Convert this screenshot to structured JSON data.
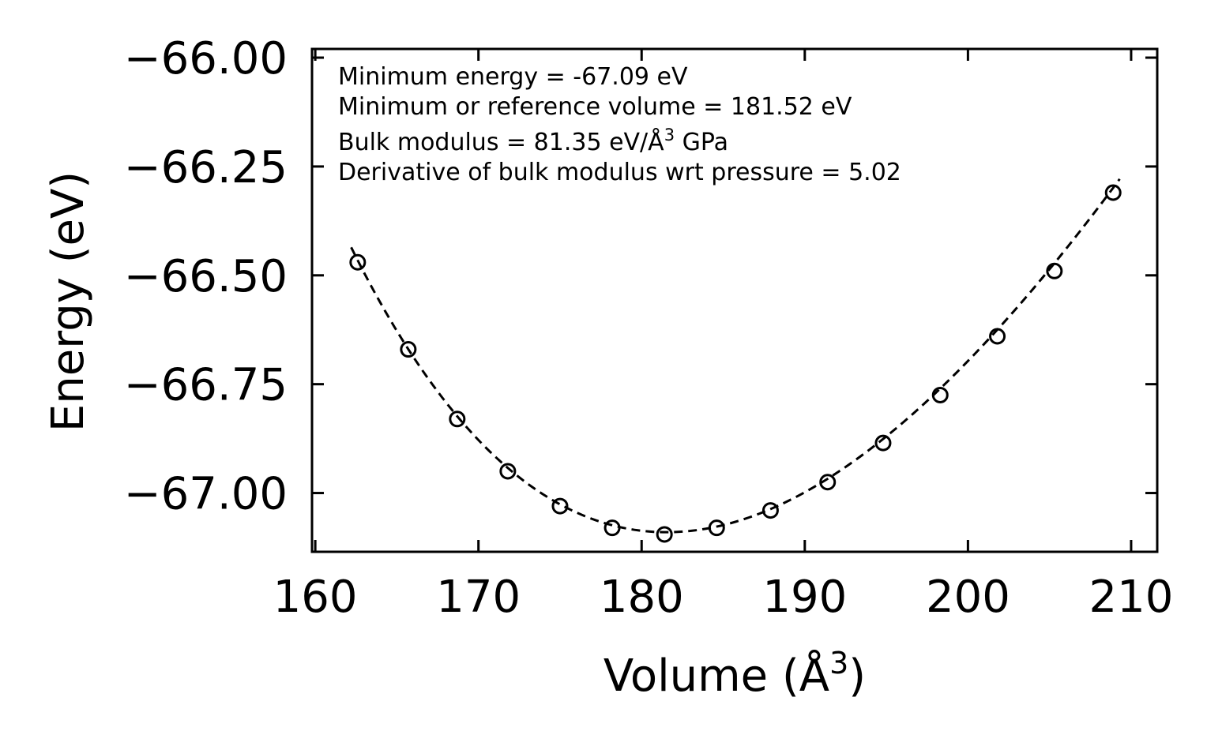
{
  "chart_data": {
    "type": "scatter",
    "title": "",
    "xlabel": "Volume (Å",
    "xlabel_sup": "3",
    "xlabel_end": ")",
    "ylabel": "Energy (eV)",
    "xlim": [
      159.8,
      211.6
    ],
    "ylim": [
      -67.135,
      -65.98
    ],
    "xticks": [
      160,
      170,
      180,
      190,
      200,
      210
    ],
    "xtick_labels": [
      "160",
      "170",
      "180",
      "190",
      "200",
      "210"
    ],
    "yticks": [
      -66.0,
      -66.25,
      -66.5,
      -66.75,
      -67.0
    ],
    "ytick_labels": [
      "−66.00",
      "−66.25",
      "−66.50",
      "−66.75",
      "−67.00"
    ],
    "legend": "none",
    "grid": false,
    "series": [
      {
        "name": "data",
        "style": "open-circle",
        "x": [
          162.6,
          165.7,
          168.7,
          171.8,
          175.0,
          178.2,
          181.4,
          184.6,
          187.9,
          191.4,
          194.8,
          198.3,
          201.8,
          205.3,
          208.9
        ],
        "y": [
          -66.47,
          -66.67,
          -66.83,
          -66.95,
          -67.03,
          -67.08,
          -67.095,
          -67.08,
          -67.04,
          -66.975,
          -66.885,
          -66.775,
          -66.64,
          -66.49,
          -66.31
        ]
      },
      {
        "name": "fit",
        "style": "dashed-line",
        "equation": "birch-murnaghan",
        "E0": -67.09,
        "V0": 181.52,
        "B0_GPa": 81.35,
        "B0_prime": 5.02,
        "x_range": [
          162.2,
          209.3
        ]
      }
    ],
    "annotations": [
      {
        "text": "Minimum energy = -67.09 eV"
      },
      {
        "text": "Minimum or reference volume = 181.52 eV"
      },
      {
        "text": "Bulk modulus = 81.35 eV/Å",
        "sup": "3",
        "tail": " GPa"
      },
      {
        "text": "Derivative of bulk modulus wrt pressure = 5.02"
      }
    ]
  }
}
